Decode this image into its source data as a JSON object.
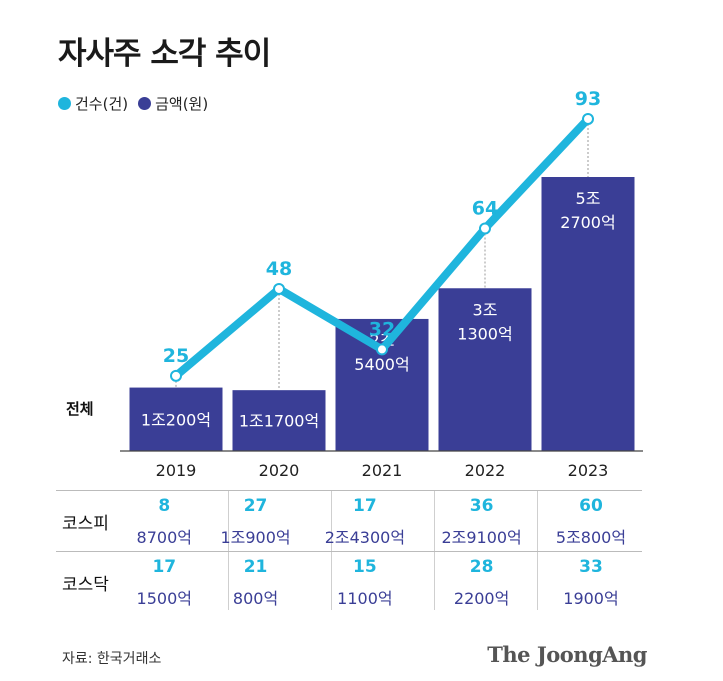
{
  "title": "자사주 소각 추이",
  "legend": [
    {
      "label": "건수(건)",
      "color": "#1fb5dd"
    },
    {
      "label": "금액(원)",
      "color": "#3a3e96"
    }
  ],
  "row_label_total": "전체",
  "chart_data": {
    "type": "bar+line",
    "title": "자사주 소각 추이",
    "categories": [
      "2019",
      "2020",
      "2021",
      "2022",
      "2023"
    ],
    "series": [
      {
        "name": "금액(원)",
        "type": "bar",
        "color": "#3a3e96",
        "values_won_100m": [
          12200,
          11700,
          25400,
          31300,
          52700
        ],
        "labels": [
          [
            "1조200억"
          ],
          [
            "1조1700억"
          ],
          [
            "2조",
            "5400억"
          ],
          [
            "3조",
            "1300억"
          ],
          [
            "5조",
            "2700억"
          ]
        ]
      },
      {
        "name": "건수(건)",
        "type": "line",
        "color": "#1fb5dd",
        "values": [
          25,
          48,
          32,
          64,
          93
        ]
      }
    ]
  },
  "table": {
    "rows": [
      {
        "market": "코스피",
        "counts": [
          "8",
          "27",
          "17",
          "36",
          "60"
        ],
        "amounts": [
          "8700억",
          "1조900억",
          "2조4300억",
          "2조9100억",
          "5조800억"
        ]
      },
      {
        "market": "코스닥",
        "counts": [
          "17",
          "21",
          "15",
          "28",
          "33"
        ],
        "amounts": [
          "1500억",
          "800억",
          "1100억",
          "2200억",
          "1900억"
        ]
      }
    ]
  },
  "source": "자료: 한국거래소",
  "brand": "The JoongAng"
}
